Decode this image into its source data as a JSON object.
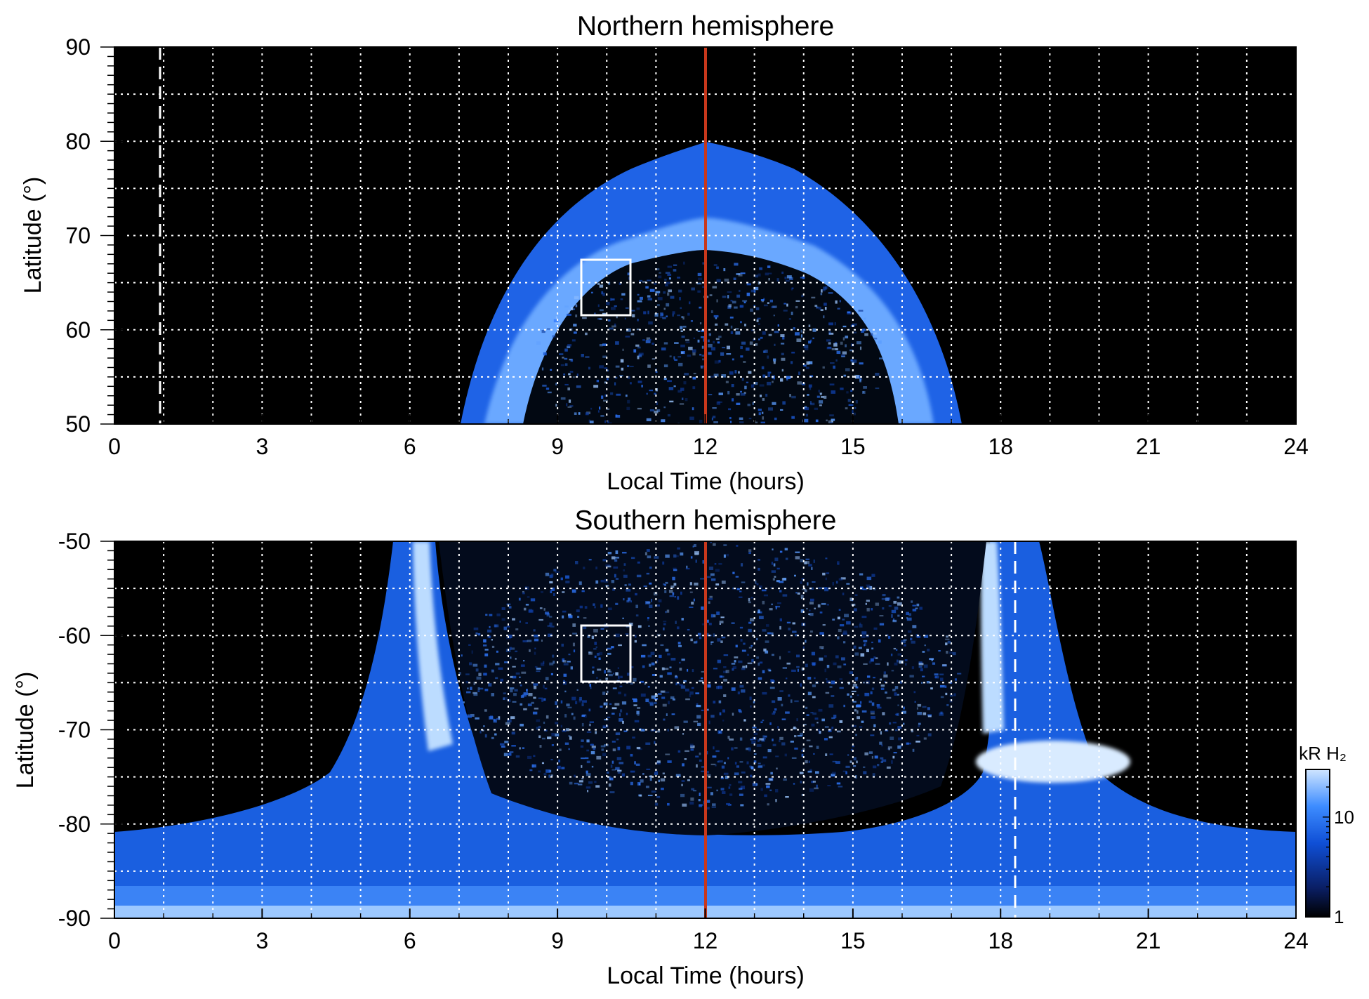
{
  "chart_data": [
    {
      "type": "heatmap",
      "title": "Northern hemisphere",
      "xlabel": "Local Time (hours)",
      "ylabel": "Latitude (°)",
      "xlim": [
        0,
        24
      ],
      "ylim": [
        50,
        90
      ],
      "xticks": [
        "0",
        "3",
        "6",
        "9",
        "12",
        "15",
        "18",
        "21",
        "24"
      ],
      "yticks": [
        "50",
        "60",
        "70",
        "80",
        "90"
      ],
      "grid": true,
      "markers": {
        "solid_vertical_line_hours": 12,
        "solid_line_color": "#c8381c",
        "dashed_vertical_line_hours": 0.9,
        "box": {
          "hours": [
            9.5,
            10.5
          ],
          "latitude": [
            61.5,
            67.5
          ]
        }
      },
      "emission": {
        "auroral_oval_hours": [
          7.0,
          17.2
        ],
        "oval_peak_latitude_at_noon": 80,
        "inner_edge_latitude_at_noon": 68.5
      }
    },
    {
      "type": "heatmap",
      "title": "Southern hemisphere",
      "xlabel": "Local Time (hours)",
      "ylabel": "Latitude (°)",
      "xlim": [
        0,
        24
      ],
      "ylim": [
        -90,
        -50
      ],
      "xticks": [
        "0",
        "3",
        "6",
        "9",
        "12",
        "15",
        "18",
        "21",
        "24"
      ],
      "yticks": [
        "-90",
        "-80",
        "-70",
        "-60",
        "-50"
      ],
      "grid": true,
      "markers": {
        "solid_vertical_line_hours": 12,
        "solid_line_color": "#c8381c",
        "dashed_vertical_line_hours": 18.3,
        "box": {
          "hours": [
            9.5,
            10.5
          ],
          "latitude": [
            -65,
            -59
          ]
        }
      },
      "emission": {
        "bright_band_hours": [
          6.3,
          17.7
        ],
        "polar_cap_latitude": -81
      }
    }
  ],
  "colorbar": {
    "label": "kR H₂",
    "ticks": [
      "1",
      "10"
    ],
    "scale": "log",
    "colors": [
      "#000000",
      "#0a1f66",
      "#0f4fd6",
      "#3d8cff",
      "#cfe5ff"
    ]
  }
}
